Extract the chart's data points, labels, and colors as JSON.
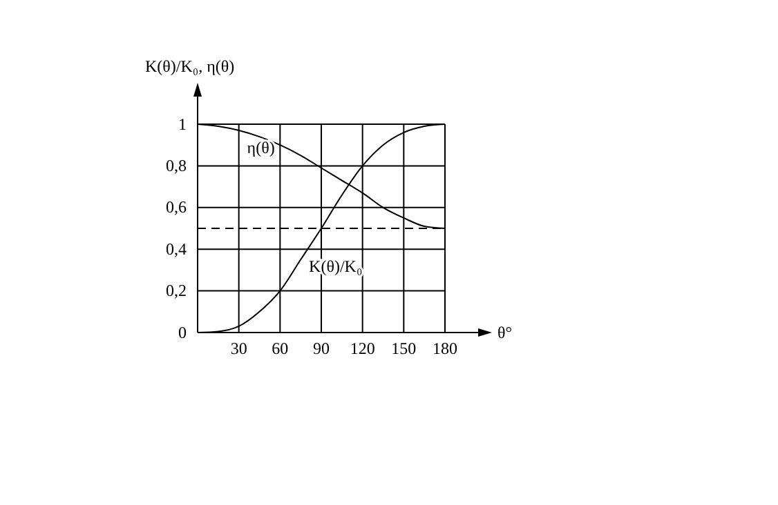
{
  "chart_data": {
    "type": "line",
    "xlabel": "θ°",
    "ylabel": "K(θ)/K₀, η(θ)",
    "x": [
      0,
      15,
      30,
      45,
      60,
      75,
      90,
      105,
      120,
      135,
      150,
      165,
      180
    ],
    "series": [
      {
        "name": "η(θ)",
        "color": "#000000",
        "values": [
          1,
          0.99,
          0.97,
          0.94,
          0.9,
          0.85,
          0.79,
          0.73,
          0.67,
          0.6,
          0.55,
          0.51,
          0.5
        ]
      },
      {
        "name": "K(θ)/K₀",
        "color": "#000000",
        "values": [
          0,
          0.005,
          0.03,
          0.1,
          0.2,
          0.35,
          0.5,
          0.66,
          0.8,
          0.9,
          0.96,
          0.99,
          1
        ]
      }
    ],
    "xlim": [
      0,
      180
    ],
    "xticks": [
      30,
      60,
      90,
      120,
      150,
      180
    ],
    "ylim": [
      0,
      1
    ],
    "yticks": [
      0,
      {
        "value": 0.2,
        "label": "0,2"
      },
      {
        "value": 0.4,
        "label": "0,4"
      },
      {
        "value": 0.6,
        "label": "0,6"
      },
      {
        "value": 0.8,
        "label": "0,8"
      },
      1
    ],
    "ref_lines": [
      {
        "axis": "y",
        "value": 0.5,
        "line_style": "dashed"
      }
    ],
    "grid": true,
    "marker": "none",
    "line_style": "solid"
  }
}
